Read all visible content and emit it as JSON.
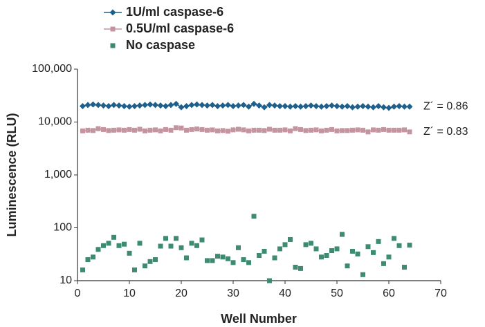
{
  "chart_data": {
    "type": "scatter",
    "x_label": "Well Number",
    "y_label": "Luminescence (RLU)",
    "log_y": true,
    "xlim": [
      0,
      70
    ],
    "xticks": [
      0,
      10,
      20,
      30,
      40,
      50,
      60,
      70
    ],
    "ylim": [
      10,
      100000
    ],
    "yticks": [
      10,
      100,
      {
        "value": 1000,
        "label": "1,000"
      },
      {
        "value": 10000,
        "label": "10,000"
      },
      {
        "value": 100000,
        "label": "100,000"
      }
    ],
    "x": [
      1,
      2,
      3,
      4,
      5,
      6,
      7,
      8,
      9,
      10,
      11,
      12,
      13,
      14,
      15,
      16,
      17,
      18,
      19,
      20,
      21,
      22,
      23,
      24,
      25,
      26,
      27,
      28,
      29,
      30,
      31,
      32,
      33,
      34,
      35,
      36,
      37,
      38,
      39,
      40,
      41,
      42,
      43,
      44,
      45,
      46,
      47,
      48,
      49,
      50,
      51,
      52,
      53,
      54,
      55,
      56,
      57,
      58,
      59,
      60,
      61,
      62,
      63,
      64
    ],
    "series": [
      {
        "name": "1U/ml caspase-6",
        "color": "#1f5f8b",
        "marker": "diamond",
        "line": true,
        "values": [
          20000,
          21000,
          21500,
          21000,
          20500,
          20000,
          21000,
          20500,
          20000,
          19500,
          20000,
          20500,
          21000,
          21500,
          21000,
          20500,
          20000,
          21000,
          22000,
          19000,
          20000,
          21000,
          21500,
          21000,
          20500,
          21000,
          20000,
          20500,
          21000,
          20000,
          20500,
          21000,
          19500,
          22000,
          20500,
          19000,
          21000,
          20500,
          20000,
          20000,
          19500,
          20000,
          19500,
          20000,
          20500,
          20000,
          19500,
          20000,
          20500,
          20000,
          19500,
          20000,
          19000,
          19500,
          20000,
          19500,
          19000,
          20000,
          19000,
          18500,
          19500,
          20000,
          19500,
          19500
        ]
      },
      {
        "name": "0.5U/ml caspase-6",
        "color": "#c4959f",
        "marker": "square",
        "line": true,
        "values": [
          6800,
          7000,
          6900,
          7500,
          7200,
          6900,
          7000,
          7100,
          7000,
          7200,
          7000,
          7300,
          6800,
          7000,
          7100,
          6800,
          7200,
          7000,
          7800,
          7700,
          7000,
          7200,
          7400,
          7200,
          7000,
          7100,
          6800,
          6900,
          6700,
          7100,
          7300,
          7100,
          6800,
          7000,
          7000,
          6900,
          7300,
          7000,
          7000,
          7100,
          6800,
          7500,
          7200,
          6900,
          7000,
          7100,
          6800,
          7000,
          7200,
          6800,
          6900,
          6900,
          7000,
          7100,
          7000,
          6500,
          7100,
          7000,
          7200,
          7000,
          7000,
          7000,
          7100,
          6500
        ]
      },
      {
        "name": "No caspase",
        "color": "#3d8c72",
        "marker": "square",
        "line": false,
        "values": [
          16,
          25,
          28,
          39,
          46,
          51,
          66,
          46,
          49,
          33,
          16,
          51,
          19,
          23,
          25,
          45,
          63,
          45,
          63,
          42,
          27,
          51,
          46,
          59,
          24,
          24,
          29,
          28,
          26,
          22,
          42,
          25,
          22,
          165,
          30,
          36,
          10,
          27,
          40,
          48,
          60,
          18,
          17,
          48,
          51,
          40,
          28,
          30,
          37,
          40,
          75,
          19,
          36,
          32,
          13,
          44,
          34,
          55,
          21,
          28,
          63,
          46,
          18,
          47
        ]
      }
    ],
    "annotations": [
      "Z´ = 0.86",
      "Z´ = 0.83"
    ]
  }
}
